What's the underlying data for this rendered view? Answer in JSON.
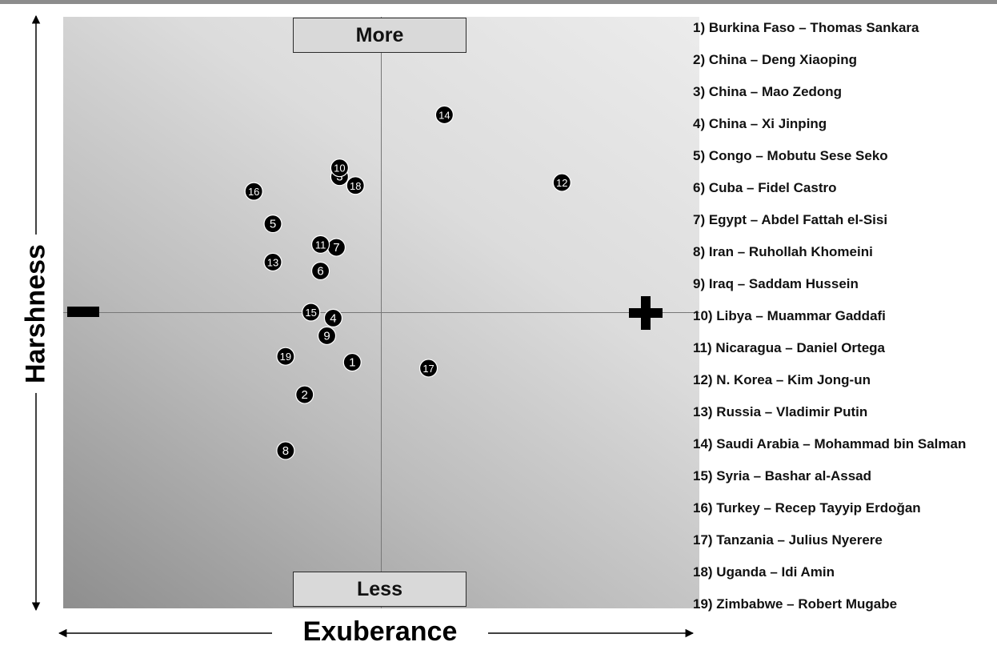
{
  "chart_data": {
    "type": "scatter",
    "xlabel": "Exuberance",
    "ylabel": "Harshness",
    "top_label": "More",
    "bottom_label": "Less",
    "left_symbol": "minus",
    "right_symbol": "plus",
    "xlim": [
      -10,
      10
    ],
    "ylim": [
      -10,
      10
    ],
    "grid": false,
    "legend_position": "right",
    "points": [
      {
        "id": "1",
        "x": -0.9,
        "y": -1.7
      },
      {
        "id": "2",
        "x": -2.4,
        "y": -2.8
      },
      {
        "id": "3",
        "x": -1.3,
        "y": 4.6
      },
      {
        "id": "4",
        "x": -1.5,
        "y": -0.2
      },
      {
        "id": "5",
        "x": -3.4,
        "y": 3.0
      },
      {
        "id": "6",
        "x": -1.9,
        "y": 1.4
      },
      {
        "id": "7",
        "x": -1.4,
        "y": 2.2
      },
      {
        "id": "8",
        "x": -3.0,
        "y": -4.7
      },
      {
        "id": "9",
        "x": -1.7,
        "y": -0.8
      },
      {
        "id": "10",
        "x": -1.3,
        "y": 4.9
      },
      {
        "id": "11",
        "x": -1.9,
        "y": 2.3
      },
      {
        "id": "12",
        "x": 5.7,
        "y": 4.4
      },
      {
        "id": "13",
        "x": -3.4,
        "y": 1.7
      },
      {
        "id": "14",
        "x": 2.0,
        "y": 6.7
      },
      {
        "id": "15",
        "x": -2.2,
        "y": 0.0
      },
      {
        "id": "16",
        "x": -4.0,
        "y": 4.1
      },
      {
        "id": "17",
        "x": 1.5,
        "y": -1.9
      },
      {
        "id": "18",
        "x": -0.8,
        "y": 4.3
      },
      {
        "id": "19",
        "x": -3.0,
        "y": -1.5
      }
    ],
    "legend": [
      "1) Burkina Faso – Thomas Sankara",
      "2) China – Deng Xiaoping",
      "3) China – Mao Zedong",
      "4) China – Xi Jinping",
      "5) Congo – Mobutu Sese Seko",
      "6) Cuba – Fidel Castro",
      "7) Egypt – Abdel Fattah el-Sisi",
      "8) Iran – Ruhollah Khomeini",
      "9) Iraq – Saddam Hussein",
      "10) Libya – Muammar Gaddafi",
      "11) Nicaragua – Daniel Ortega",
      "12) N. Korea – Kim Jong-un",
      "13) Russia – Vladimir Putin",
      "14) Saudi Arabia – Mohammad bin Salman",
      "15) Syria – Bashar al-Assad",
      "16) Turkey – Recep Tayyip Erdoğan",
      "17) Tanzania – Julius Nyerere",
      "18) Uganda – Idi Amin",
      "19) Zimbabwe – Robert Mugabe"
    ]
  }
}
